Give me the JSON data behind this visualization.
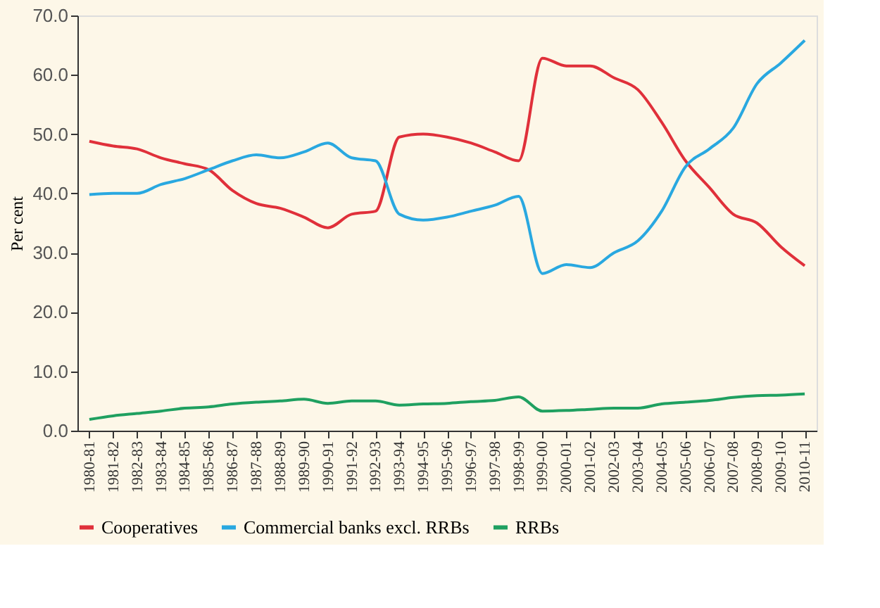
{
  "chart_data": {
    "type": "line",
    "ylabel": "Per cent",
    "categories": [
      "1980-81",
      "1981-82",
      "1982-83",
      "1983-84",
      "1984-85",
      "1985-86",
      "1986-87",
      "1987-88",
      "1988-89",
      "1989-90",
      "1990-91",
      "1991-92",
      "1992-93",
      "1993-94",
      "1994-95",
      "1995-96",
      "1996-97",
      "1997-98",
      "1998-99",
      "1999-00",
      "2000-01",
      "2001-02",
      "2002-03",
      "2003-04",
      "2004-05",
      "2005-06",
      "2006-07",
      "2007-08",
      "2008-09",
      "2009-10",
      "2010-11"
    ],
    "series": [
      {
        "name": "Cooperatives",
        "color": "#e0303a",
        "values": [
          48.8,
          48,
          47.5,
          46,
          45,
          44,
          40.5,
          38.3,
          37.5,
          36,
          34.2,
          36.5,
          37,
          49.5,
          50,
          49.5,
          48.5,
          47,
          45.5,
          62.8,
          61.5,
          61.5,
          59.5,
          57.5,
          52,
          45.5,
          41,
          36.5,
          35,
          31,
          27.8
        ]
      },
      {
        "name": "Commercial banks excl. RRBs",
        "color": "#29a8e0",
        "values": [
          39.8,
          40,
          40,
          41.5,
          42.5,
          44,
          45.5,
          46.5,
          46,
          47,
          48.5,
          46,
          45.5,
          36.5,
          35.5,
          36,
          37,
          38,
          39.5,
          26.5,
          28,
          27.5,
          30,
          32,
          37,
          44.5,
          47.5,
          51,
          58.5,
          62,
          65.8
        ]
      },
      {
        "name": "RRBs",
        "color": "#1fa060",
        "values": [
          1.9,
          2.5,
          2.9,
          3.3,
          3.8,
          4,
          4.5,
          4.8,
          5,
          5.3,
          4.6,
          5,
          5,
          4.3,
          4.5,
          4.6,
          4.9,
          5.1,
          5.7,
          3.3,
          3.4,
          3.6,
          3.8,
          3.8,
          4.5,
          4.8,
          5.1,
          5.6,
          5.9,
          6,
          6.2
        ]
      }
    ],
    "ylim": [
      0,
      70
    ],
    "yticks": [
      {
        "value": 0,
        "label": "0.0"
      },
      {
        "value": 10,
        "label": "10.0"
      },
      {
        "value": 20,
        "label": "20.0"
      },
      {
        "value": 30,
        "label": "30.0"
      },
      {
        "value": 40,
        "label": "40.0"
      },
      {
        "value": 50,
        "label": "50.0"
      },
      {
        "value": 60,
        "label": "60.0"
      },
      {
        "value": 70,
        "label": "70.0"
      }
    ],
    "grid": false,
    "legend": "bottom",
    "marker": "none",
    "line_style": "solid"
  }
}
